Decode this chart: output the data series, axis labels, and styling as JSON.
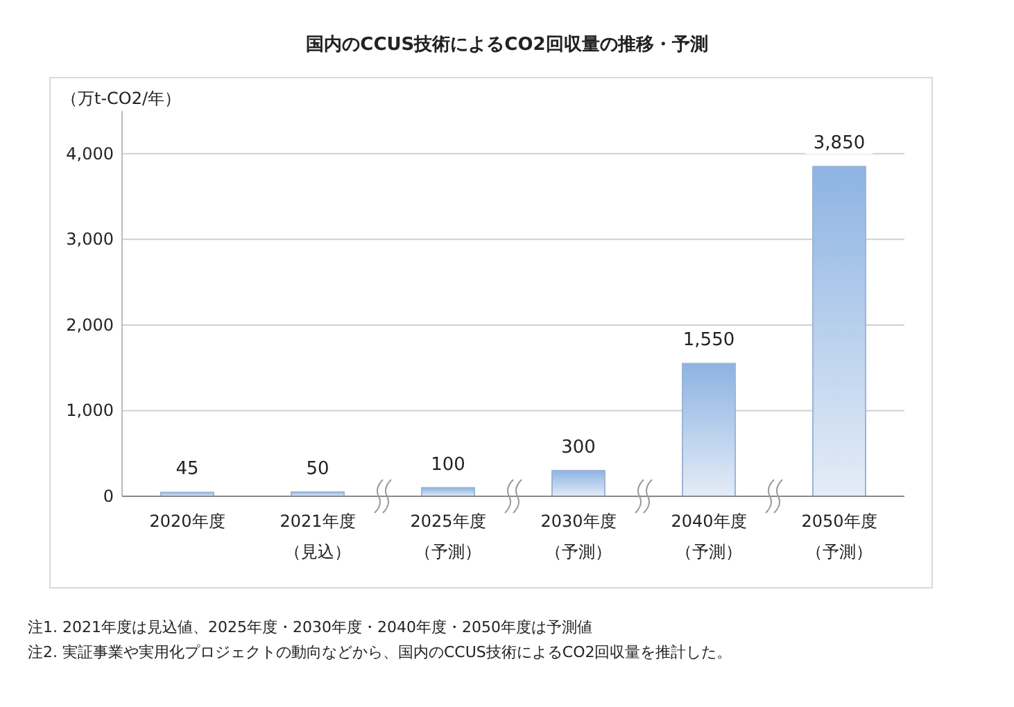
{
  "chart_data": {
    "type": "bar",
    "title": "国内のCCUS技術によるCO2回収量の推移・予測",
    "ylabel": "（万t-CO2/年）",
    "categories": [
      "2020年度",
      "2021年度（見込）",
      "2025年度（予測）",
      "2030年度（予測）",
      "2040年度（予測）",
      "2050年度（予測）"
    ],
    "values": [
      45,
      50,
      100,
      300,
      1550,
      3850
    ],
    "value_labels": [
      "45",
      "50",
      "100",
      "300",
      "1,550",
      "3,850"
    ],
    "color": "#8db3e2",
    "ylim": [
      0,
      4500
    ],
    "yticks": [
      0,
      {
        "value": 1000,
        "label": "1,000"
      },
      {
        "value": 2000,
        "label": "2,000"
      },
      {
        "value": 3000,
        "label": "3,000"
      },
      {
        "value": 4000,
        "label": "4,000"
      }
    ],
    "grid": "y",
    "annotations": [
      "注1.  2021年度は見込値、2025年度・2030年度・2040年度・2050年度は予測値",
      "注2.  実証事業や実用化プロジェクトの動向などから、国内のCCUS技術によるCO2回収量を推計した。"
    ]
  }
}
